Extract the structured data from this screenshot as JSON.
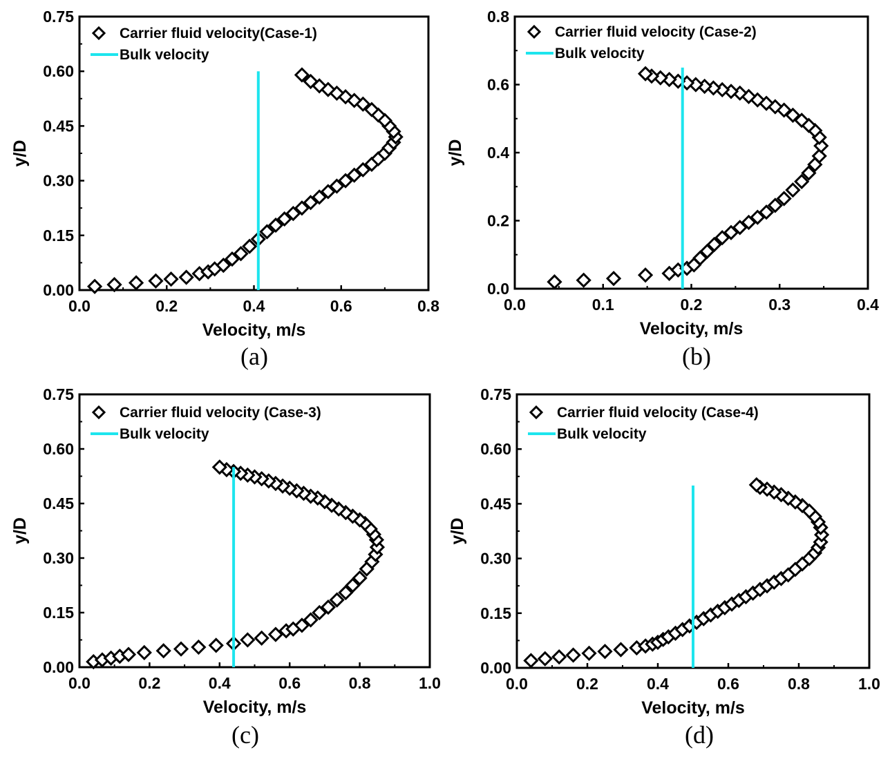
{
  "colors": {
    "marker": "#000000",
    "bulk_line": "#1de5ee",
    "frame": "#000000"
  },
  "chart_data": [
    {
      "panel": "(a)",
      "type": "scatter",
      "xlabel": "Velocity, m/s",
      "ylabel": "y/D",
      "xlim": [
        0.0,
        0.8
      ],
      "ylim": [
        0.0,
        0.75
      ],
      "xticks": [
        "0.0",
        "0.2",
        "0.4",
        "0.6",
        "0.8"
      ],
      "yticks": [
        "0.00",
        "0.15",
        "0.30",
        "0.45",
        "0.60",
        "0.75"
      ],
      "legend": [
        "Carrier fluid velocity(Case-1)",
        "Bulk velocity"
      ],
      "series": [
        {
          "name": "Carrier fluid velocity(Case-1)",
          "kind": "marker",
          "x": [
            0.035,
            0.08,
            0.13,
            0.175,
            0.21,
            0.245,
            0.275,
            0.295,
            0.31,
            0.33,
            0.35,
            0.37,
            0.39,
            0.41,
            0.43,
            0.45,
            0.47,
            0.49,
            0.51,
            0.53,
            0.55,
            0.57,
            0.59,
            0.61,
            0.63,
            0.65,
            0.67,
            0.685,
            0.7,
            0.71,
            0.72,
            0.725,
            0.72,
            0.71,
            0.7,
            0.685,
            0.67,
            0.65,
            0.63,
            0.61,
            0.59,
            0.57,
            0.55,
            0.53,
            0.51
          ],
          "y": [
            0.01,
            0.015,
            0.02,
            0.025,
            0.03,
            0.035,
            0.045,
            0.05,
            0.058,
            0.068,
            0.085,
            0.1,
            0.12,
            0.14,
            0.16,
            0.178,
            0.195,
            0.21,
            0.225,
            0.24,
            0.255,
            0.27,
            0.285,
            0.3,
            0.315,
            0.33,
            0.345,
            0.36,
            0.375,
            0.39,
            0.405,
            0.42,
            0.435,
            0.45,
            0.465,
            0.48,
            0.495,
            0.51,
            0.52,
            0.53,
            0.54,
            0.55,
            0.56,
            0.572,
            0.59
          ]
        },
        {
          "name": "Bulk velocity",
          "kind": "line",
          "x": [
            0.41,
            0.41
          ],
          "y": [
            0.0,
            0.6
          ]
        }
      ]
    },
    {
      "panel": "(b)",
      "type": "scatter",
      "xlabel": "Velocity, m/s",
      "ylabel": "y/D",
      "xlim": [
        0.0,
        0.4
      ],
      "ylim": [
        0.0,
        0.8
      ],
      "xticks": [
        "0.0",
        "0.1",
        "0.2",
        "0.3",
        "0.4"
      ],
      "yticks": [
        "0.0",
        "0.2",
        "0.4",
        "0.6",
        "0.8"
      ],
      "legend": [
        "Carrier fluid velocity (Case-2)",
        "Bulk velocity"
      ],
      "series": [
        {
          "name": "Carrier fluid velocity (Case-2)",
          "kind": "marker",
          "x": [
            0.045,
            0.078,
            0.112,
            0.148,
            0.175,
            0.185,
            0.195,
            0.203,
            0.21,
            0.218,
            0.226,
            0.235,
            0.245,
            0.255,
            0.265,
            0.275,
            0.285,
            0.295,
            0.305,
            0.315,
            0.325,
            0.333,
            0.34,
            0.345,
            0.347,
            0.345,
            0.34,
            0.333,
            0.325,
            0.315,
            0.305,
            0.295,
            0.285,
            0.275,
            0.265,
            0.255,
            0.245,
            0.235,
            0.225,
            0.215,
            0.205,
            0.195,
            0.185,
            0.175,
            0.165,
            0.155,
            0.148
          ],
          "y": [
            0.02,
            0.025,
            0.03,
            0.04,
            0.045,
            0.055,
            0.06,
            0.07,
            0.09,
            0.11,
            0.13,
            0.15,
            0.165,
            0.18,
            0.195,
            0.21,
            0.225,
            0.245,
            0.265,
            0.29,
            0.315,
            0.34,
            0.365,
            0.39,
            0.42,
            0.445,
            0.465,
            0.48,
            0.495,
            0.51,
            0.525,
            0.535,
            0.545,
            0.555,
            0.565,
            0.575,
            0.58,
            0.585,
            0.59,
            0.595,
            0.6,
            0.605,
            0.61,
            0.615,
            0.62,
            0.625,
            0.632
          ]
        },
        {
          "name": "Bulk velocity",
          "kind": "line",
          "x": [
            0.19,
            0.19
          ],
          "y": [
            0.0,
            0.65
          ]
        }
      ]
    },
    {
      "panel": "(c)",
      "type": "scatter",
      "xlabel": "Velocity, m/s",
      "ylabel": "y/D",
      "xlim": [
        0.0,
        1.0
      ],
      "ylim": [
        0.0,
        0.75
      ],
      "xticks": [
        "0.0",
        "0.2",
        "0.4",
        "0.6",
        "0.8",
        "1.0"
      ],
      "yticks": [
        "0.00",
        "0.15",
        "0.30",
        "0.45",
        "0.60",
        "0.75"
      ],
      "legend": [
        "Carrier fluid velocity (Case-3)",
        "Bulk velocity"
      ],
      "series": [
        {
          "name": "Carrier fluid velocity (Case-3)",
          "kind": "marker",
          "x": [
            0.04,
            0.065,
            0.09,
            0.115,
            0.14,
            0.185,
            0.24,
            0.29,
            0.34,
            0.39,
            0.44,
            0.48,
            0.52,
            0.56,
            0.59,
            0.61,
            0.635,
            0.66,
            0.685,
            0.71,
            0.735,
            0.76,
            0.78,
            0.8,
            0.82,
            0.835,
            0.845,
            0.85,
            0.848,
            0.84,
            0.83,
            0.815,
            0.8,
            0.78,
            0.76,
            0.74,
            0.72,
            0.7,
            0.68,
            0.66,
            0.64,
            0.62,
            0.6,
            0.58,
            0.56,
            0.54,
            0.52,
            0.5,
            0.48,
            0.46,
            0.44,
            0.42,
            0.4
          ],
          "y": [
            0.015,
            0.02,
            0.025,
            0.03,
            0.035,
            0.04,
            0.045,
            0.05,
            0.055,
            0.06,
            0.065,
            0.075,
            0.08,
            0.09,
            0.1,
            0.105,
            0.115,
            0.13,
            0.15,
            0.165,
            0.185,
            0.205,
            0.225,
            0.245,
            0.27,
            0.29,
            0.31,
            0.33,
            0.35,
            0.365,
            0.38,
            0.395,
            0.405,
            0.415,
            0.425,
            0.435,
            0.445,
            0.455,
            0.465,
            0.47,
            0.478,
            0.485,
            0.492,
            0.498,
            0.505,
            0.512,
            0.518,
            0.523,
            0.528,
            0.533,
            0.538,
            0.543,
            0.55
          ]
        },
        {
          "name": "Bulk velocity",
          "kind": "line",
          "x": [
            0.44,
            0.44
          ],
          "y": [
            0.0,
            0.55
          ]
        }
      ]
    },
    {
      "panel": "(d)",
      "type": "scatter",
      "xlabel": "Velocity, m/s",
      "ylabel": "y/D",
      "xlim": [
        0.0,
        1.0
      ],
      "ylim": [
        0.0,
        0.75
      ],
      "xticks": [
        "0.0",
        "0.2",
        "0.4",
        "0.6",
        "0.8",
        "1.0"
      ],
      "yticks": [
        "0.00",
        "0.15",
        "0.30",
        "0.45",
        "0.60",
        "0.75"
      ],
      "legend": [
        "Carrier fluid velocity (Case-4)",
        "Bulk velocity"
      ],
      "series": [
        {
          "name": "Carrier fluid velocity (Case-4)",
          "kind": "marker",
          "x": [
            0.04,
            0.08,
            0.12,
            0.16,
            0.205,
            0.25,
            0.295,
            0.34,
            0.365,
            0.385,
            0.4,
            0.415,
            0.43,
            0.45,
            0.47,
            0.49,
            0.51,
            0.53,
            0.55,
            0.57,
            0.59,
            0.61,
            0.63,
            0.65,
            0.67,
            0.69,
            0.71,
            0.73,
            0.75,
            0.77,
            0.79,
            0.81,
            0.83,
            0.845,
            0.855,
            0.862,
            0.865,
            0.862,
            0.855,
            0.845,
            0.83,
            0.81,
            0.79,
            0.77,
            0.75,
            0.73,
            0.71,
            0.69,
            0.68
          ],
          "y": [
            0.02,
            0.025,
            0.03,
            0.035,
            0.04,
            0.045,
            0.05,
            0.055,
            0.06,
            0.065,
            0.07,
            0.078,
            0.085,
            0.095,
            0.105,
            0.115,
            0.125,
            0.135,
            0.145,
            0.155,
            0.165,
            0.175,
            0.185,
            0.195,
            0.205,
            0.215,
            0.225,
            0.235,
            0.245,
            0.255,
            0.27,
            0.285,
            0.3,
            0.315,
            0.33,
            0.345,
            0.365,
            0.385,
            0.4,
            0.415,
            0.43,
            0.445,
            0.455,
            0.465,
            0.475,
            0.482,
            0.49,
            0.495,
            0.502
          ]
        },
        {
          "name": "Bulk velocity",
          "kind": "line",
          "x": [
            0.5,
            0.5
          ],
          "y": [
            0.0,
            0.5
          ]
        }
      ]
    }
  ]
}
